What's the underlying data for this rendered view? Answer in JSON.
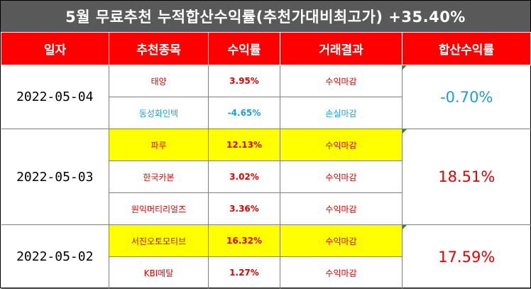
{
  "title": "5월 무료추천 누적합산수익률(추천가대비최고가) +35.40%",
  "headers": [
    "일자",
    "추천종목",
    "수익률",
    "거래결과",
    "합산수익률"
  ],
  "groups": [
    {
      "date": "2022-05-04",
      "total": "-0.70%",
      "rows": [
        {
          "stock": "태양",
          "ret": "3.95%",
          "result": "수익마감"
        },
        {
          "stock": "동성화인텍",
          "ret": "-4.65%",
          "result": "손실마감"
        }
      ]
    },
    {
      "date": "2022-05-03",
      "total": "18.51%",
      "rows": [
        {
          "stock": "파루",
          "ret": "12.13%",
          "result": "수익마감"
        },
        {
          "stock": "한국카본",
          "ret": "3.02%",
          "result": "수익마감"
        },
        {
          "stock": "원익머티리얼즈",
          "ret": "3.36%",
          "result": "수익마감"
        }
      ]
    },
    {
      "date": "2022-05-02",
      "total": "17.59%",
      "rows": [
        {
          "stock": "서진오토모티브",
          "ret": "16.32%",
          "result": "수익마감"
        },
        {
          "stock": "KBI메탈",
          "ret": "1.27%",
          "result": "수익마감"
        }
      ]
    }
  ],
  "colors": {
    "header_bg": "#ff0000",
    "title_bg": "#595959",
    "profit": "#e60000",
    "loss": "#1f9ed1",
    "highlight": "#ffff00"
  }
}
